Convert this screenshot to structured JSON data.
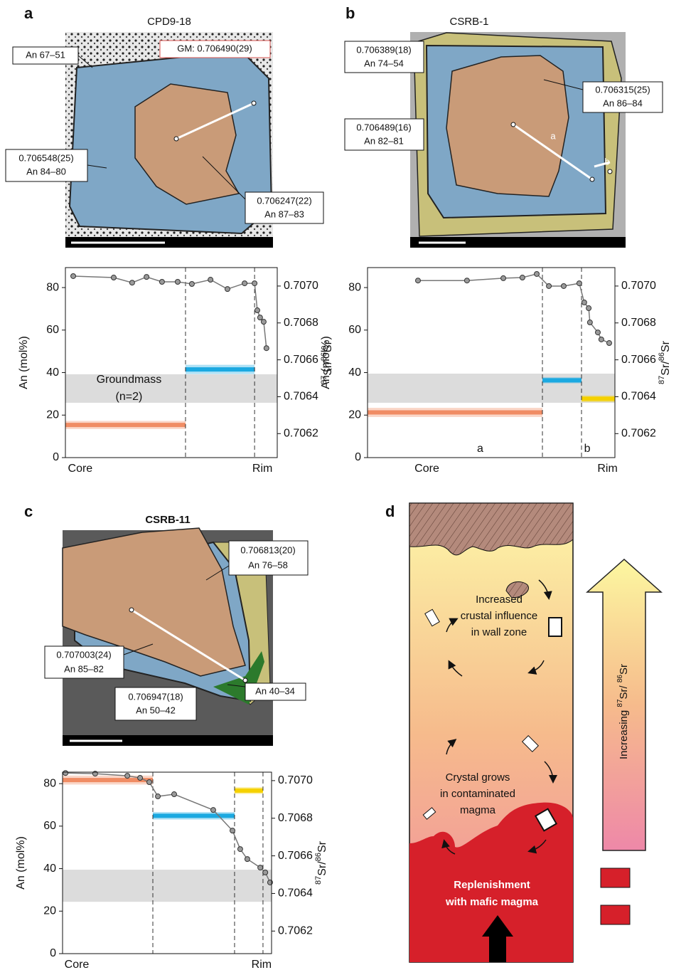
{
  "panel_labels": [
    "a",
    "b",
    "c",
    "d"
  ],
  "images": [
    {
      "title": "CPD9-18",
      "labels": [
        [
          "GM: 0.706490(29)"
        ],
        [
          "An 67–51"
        ],
        [
          "0.706548(25)",
          "An 84–80"
        ],
        [
          "0.706247(22)",
          "An 87–83"
        ]
      ]
    },
    {
      "title": "CSRB-1",
      "labels": [
        [
          "0.706389(18)",
          "An 74–54"
        ],
        [
          "0.706315(25)",
          "An 86–84"
        ],
        [
          "0.706489(16)",
          "An 82–81"
        ],
        [
          "a"
        ],
        [
          "b"
        ]
      ]
    },
    {
      "title": "CSRB-11",
      "labels": [
        [
          "0.706813(20)",
          "An 76–58"
        ],
        [
          "0.707003(24)",
          "An 85–82"
        ],
        [
          "0.706947(18)",
          "An 50–42"
        ],
        [
          "An 40–34"
        ]
      ]
    }
  ],
  "chart_data": [
    {
      "type": "line",
      "ylabel": "An (mol%)",
      "y2label": [
        "87",
        "Sr/",
        "86",
        "Sr"
      ],
      "color": "#777777",
      "x": [
        3.7,
        22.8,
        31.5,
        38.3,
        45.6,
        53,
        59.7,
        68.5,
        76.5,
        84.6,
        89.3,
        90.6,
        91.9,
        93.6,
        94.9
      ],
      "values": [
        85.4,
        84.7,
        82.3,
        85,
        82.7,
        82.7,
        81.7,
        83.7,
        79.3,
        82,
        82,
        69.3,
        65.9,
        63.9,
        51.5
      ],
      "xlim": [
        0,
        100
      ],
      "xticks": [
        {
          "value": 7,
          "label": "Core"
        },
        {
          "value": 93,
          "label": "Rim"
        }
      ],
      "ylim": [
        0,
        89.4
      ],
      "yticks": [
        0,
        20,
        40,
        60,
        80
      ],
      "y2lim": [
        0.70607,
        0.7071
      ],
      "y2ticks": [
        0.7062,
        0.7064,
        0.7066,
        0.7068,
        {
          "value": 0.707,
          "label": "0.7070"
        }
      ],
      "range_band": {
        "values": [
          25.8,
          39.2
        ],
        "color": "#dcdcdc"
      },
      "sr_bands": [
        {
          "value": 0.706247,
          "error": 2.2e-05,
          "x": [
            0,
            56.7
          ],
          "color": "#f08c64",
          "axis": "y2"
        },
        {
          "value": 0.706548,
          "error": 2.5e-05,
          "x": [
            56.7,
            89.3
          ],
          "color": "#1ba9e1",
          "axis": "y2"
        }
      ],
      "zone_boundaries": [
        56.7,
        89.3
      ],
      "annotation": [
        "Groundmass",
        "(n=2)"
      ]
    },
    {
      "type": "line",
      "ylabel": "An (mol%)",
      "y2label": [
        "87",
        "Sr/",
        "86",
        "Sr"
      ],
      "color": "#777777",
      "x": [
        20.4,
        40.2,
        54.9,
        62.6,
        68.4,
        73.3,
        79.3,
        85.6,
        87.6,
        89.4,
        89.9,
        93.1,
        94.5,
        97.7
      ],
      "values": [
        83.3,
        83.3,
        84.4,
        84.7,
        86.4,
        80.7,
        80.7,
        82,
        73,
        70.3,
        63.6,
        58.9,
        55.6,
        53.9
      ],
      "xlim": [
        0,
        100
      ],
      "xticks": [
        {
          "value": 24,
          "label": "Core"
        },
        {
          "value": 97,
          "label": "Rim"
        }
      ],
      "ylim": [
        0,
        89.4
      ],
      "yticks": [
        0,
        20,
        40,
        60,
        80
      ],
      "y2lim": [
        0.70607,
        0.7071
      ],
      "y2ticks": [
        0.7062,
        0.7064,
        0.7066,
        0.7068,
        {
          "value": 0.707,
          "label": "0.7070"
        }
      ],
      "range_band": {
        "values": [
          25.8,
          39.5
        ],
        "color": "#dcdcdc"
      },
      "sr_bands": [
        {
          "value": 0.706315,
          "error": 2.5e-05,
          "x": [
            0,
            70.7
          ],
          "color": "#f08c64",
          "axis": "y2"
        },
        {
          "value": 0.706489,
          "error": 1.6e-05,
          "x": [
            70.7,
            86.5
          ],
          "color": "#1ba9e1",
          "axis": "y2"
        },
        {
          "value": 0.706389,
          "error": 1.8e-05,
          "x": [
            86.5,
            100
          ],
          "color": "#f5d100",
          "axis": "y2"
        }
      ],
      "zone_boundaries": [
        70.7,
        86.5
      ],
      "segment_labels": [
        "a",
        "b"
      ]
    },
    {
      "type": "line",
      "ylabel": "An (mol%)",
      "y2label": [
        "87",
        "Sr/",
        "86",
        "Sr"
      ],
      "color": "#777777",
      "x": [
        1.4,
        15.6,
        31,
        37.1,
        41.5,
        45.6,
        53.4,
        72.1,
        81.3,
        85,
        88.4,
        94.6,
        97,
        99.3
      ],
      "values": [
        85,
        84.7,
        83.7,
        82.7,
        80.7,
        74,
        75,
        67.6,
        57.9,
        49.2,
        44.5,
        40.5,
        38.2,
        33.5
      ],
      "xlim": [
        0,
        100
      ],
      "xticks": [
        {
          "value": 6.8,
          "label": "Core"
        },
        {
          "value": 95.2,
          "label": "Rim"
        }
      ],
      "ylim": [
        0,
        85.4
      ],
      "yticks": [
        0,
        20,
        40,
        60,
        80
      ],
      "y2lim": [
        0.70608,
        0.707045
      ],
      "y2ticks": [
        0.7062,
        0.7064,
        0.7066,
        0.7068,
        {
          "value": 0.707,
          "label": "0.7070"
        }
      ],
      "range_band": {
        "values": [
          24.4,
          39.5
        ],
        "color": "#dcdcdc"
      },
      "sr_bands": [
        {
          "value": 0.707003,
          "error": 2.4e-05,
          "x": [
            0,
            43.2
          ],
          "color": "#f08c64",
          "axis": "y2"
        },
        {
          "value": 0.706813,
          "error": 2e-05,
          "x": [
            43.2,
            82.3
          ],
          "color": "#1ba9e1",
          "axis": "y2"
        },
        {
          "value": 0.706947,
          "error": 1.8e-05,
          "x": [
            82.3,
            95.9
          ],
          "color": "#f5d100",
          "axis": "y2"
        }
      ],
      "zone_boundaries": [
        43.2,
        82.3,
        95.9
      ]
    }
  ],
  "diagram": {
    "texts": [
      [
        "Increased",
        "crustal influence",
        "in wall zone"
      ],
      [
        "Crystal grows",
        "in contaminated",
        "magma"
      ],
      [
        "Replenishment",
        "with mafic magma"
      ]
    ],
    "arrow_label": [
      "Increasing ",
      "87",
      "Sr/ ",
      "86",
      "Sr"
    ]
  }
}
